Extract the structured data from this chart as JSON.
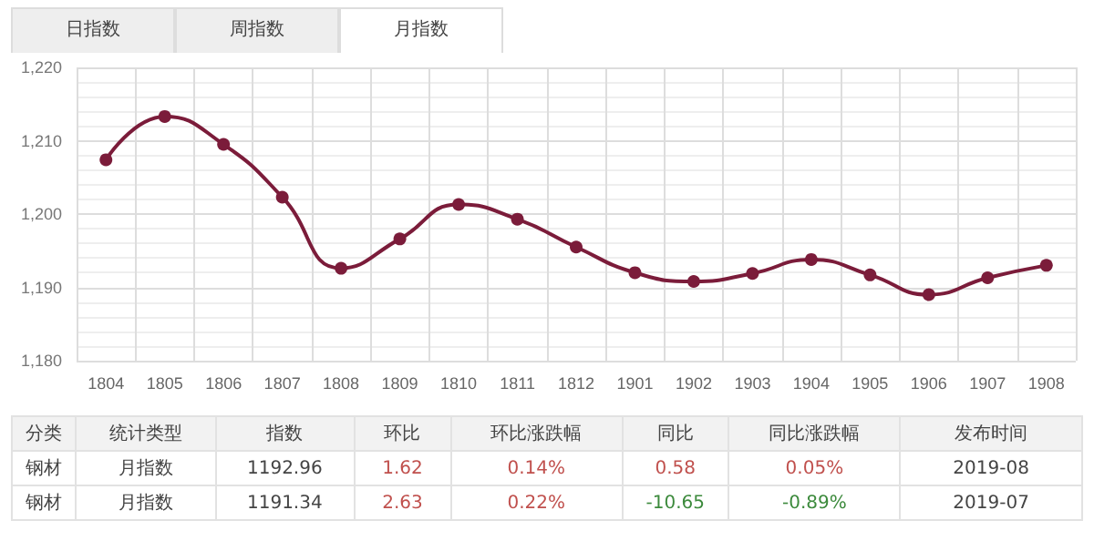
{
  "chart_data": {
    "type": "line",
    "categories": [
      "1804",
      "1805",
      "1806",
      "1807",
      "1808",
      "1809",
      "1810",
      "1811",
      "1812",
      "1901",
      "1902",
      "1903",
      "1904",
      "1905",
      "1906",
      "1907",
      "1908"
    ],
    "series": [
      {
        "color": "#7b1c3a",
        "values": [
          1207.4,
          1213.3,
          1209.5,
          1202.3,
          1192.6,
          1196.6,
          1201.3,
          1199.3,
          1195.5,
          1192.0,
          1190.8,
          1191.9,
          1193.8,
          1191.7,
          1189.0,
          1191.3,
          1193.0
        ]
      }
    ],
    "ylim": [
      1180,
      1220
    ],
    "yticks": [
      {
        "value": 1180,
        "label": "1,180"
      },
      {
        "value": 1190,
        "label": "1,190"
      },
      {
        "value": 1200,
        "label": "1,200"
      },
      {
        "value": 1210,
        "label": "1,210"
      },
      {
        "value": 1220,
        "label": "1,220"
      }
    ],
    "grid": true,
    "marker": "circle",
    "line_style": "solid",
    "annotations": [
      "日指数",
      "周指数",
      "月指数",
      "分类",
      "统计类型",
      "指数",
      "环比",
      "环比涨跌幅",
      "同比",
      "同比涨跌幅",
      "发布时间",
      "钢材",
      "月指数",
      "1192.96",
      "1.62",
      "0.14%",
      "0.58",
      "0.05%",
      "2019-08",
      "钢材",
      "月指数",
      "1191.34",
      "2.63",
      "0.22%",
      "-10.65",
      "-0.89%",
      "2019-07"
    ]
  }
}
